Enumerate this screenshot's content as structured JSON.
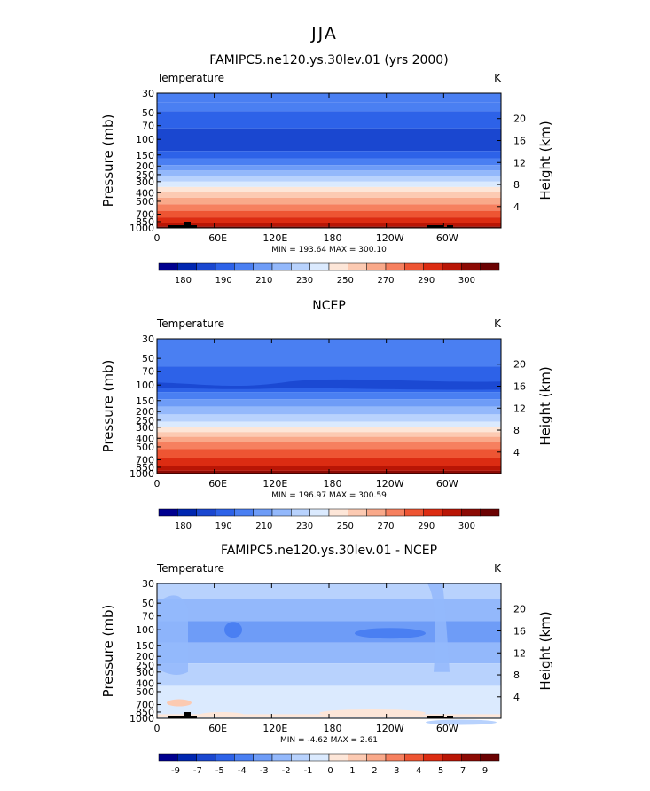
{
  "suptitle": "JJA",
  "colors": {
    "temp_levels": [
      "#00008f",
      "#0026b0",
      "#1a47d0",
      "#2d62e8",
      "#4a7ff2",
      "#6e9cf7",
      "#93b8fb",
      "#b8d2fd",
      "#dbeafe",
      "#fde6d8",
      "#fccab2",
      "#f9a98a",
      "#f6805f",
      "#ee5533",
      "#dc2c12",
      "#b91505",
      "#8c0a04",
      "#6b0202"
    ],
    "diff_levels": [
      "#00008f",
      "#0026b0",
      "#1a47d0",
      "#2d62e8",
      "#4a7ff2",
      "#6e9cf7",
      "#93b8fb",
      "#b8d2fd",
      "#dbeafe",
      "#fde6d8",
      "#fccab2",
      "#f9a98a",
      "#f6805f",
      "#ee5533",
      "#dc2c12",
      "#b91505",
      "#8c0a04",
      "#6b0202"
    ],
    "topography": "#000000"
  },
  "chart_data": [
    {
      "type": "contour",
      "title": "FAMIPC5.ne120.ys.30lev.01 (yrs 2000)",
      "left_label": "Temperature",
      "right_label": "K",
      "ylabel": "Pressure (mb)",
      "ylabel_right": "Height (km)",
      "x_ticks": [
        "0",
        "60E",
        "120E",
        "180",
        "120W",
        "60W"
      ],
      "y_ticks": [
        "30",
        "50",
        "70",
        "100",
        "150",
        "200",
        "250",
        "300",
        "400",
        "500",
        "700",
        "850",
        "1000"
      ],
      "y_right_ticks": [
        "20",
        "16",
        "12",
        "8",
        "4"
      ],
      "stats": "MIN = 193.64   MAX = 300.10",
      "colorbar_ticks": [
        "180",
        "190",
        "210",
        "230",
        "250",
        "270",
        "290",
        "300"
      ],
      "levels": [
        {
          "p": 30,
          "c": 4
        },
        {
          "p": 38,
          "c": 4
        },
        {
          "p": 48,
          "c": 3
        },
        {
          "p": 62,
          "c": 3
        },
        {
          "p": 75,
          "c": 2
        },
        {
          "p": 115,
          "c": 2
        },
        {
          "p": 135,
          "c": 3
        },
        {
          "p": 165,
          "c": 4
        },
        {
          "p": 195,
          "c": 5
        },
        {
          "p": 225,
          "c": 6
        },
        {
          "p": 260,
          "c": 7
        },
        {
          "p": 300,
          "c": 8
        },
        {
          "p": 345,
          "c": 9
        },
        {
          "p": 395,
          "c": 10
        },
        {
          "p": 455,
          "c": 11
        },
        {
          "p": 540,
          "c": 12
        },
        {
          "p": 640,
          "c": 13
        },
        {
          "p": 760,
          "c": 14
        },
        {
          "p": 880,
          "c": 15
        },
        {
          "p": 960,
          "c": 16
        }
      ]
    },
    {
      "type": "contour",
      "title": "NCEP",
      "left_label": "Temperature",
      "right_label": "K",
      "ylabel": "Pressure (mb)",
      "ylabel_right": "Height (km)",
      "x_ticks": [
        "0",
        "60E",
        "120E",
        "180",
        "120W",
        "60W"
      ],
      "y_ticks": [
        "30",
        "50",
        "70",
        "100",
        "150",
        "200",
        "250",
        "300",
        "400",
        "500",
        "700",
        "850",
        "1000"
      ],
      "y_right_ticks": [
        "20",
        "16",
        "12",
        "8",
        "4"
      ],
      "stats": "MIN = 196.97   MAX = 300.59",
      "colorbar_ticks": [
        "180",
        "190",
        "210",
        "230",
        "250",
        "270",
        "290",
        "300"
      ],
      "levels": [
        {
          "p": 30,
          "c": 4
        },
        {
          "p": 62,
          "c": 3
        },
        {
          "p": 120,
          "c": 4
        },
        {
          "p": 145,
          "c": 5
        },
        {
          "p": 175,
          "c": 6
        },
        {
          "p": 215,
          "c": 7
        },
        {
          "p": 260,
          "c": 8
        },
        {
          "p": 300,
          "c": 9
        },
        {
          "p": 340,
          "c": 10
        },
        {
          "p": 385,
          "c": 11
        },
        {
          "p": 440,
          "c": 12
        },
        {
          "p": 530,
          "c": 13
        },
        {
          "p": 660,
          "c": 14
        },
        {
          "p": 820,
          "c": 15
        },
        {
          "p": 930,
          "c": 16
        }
      ]
    },
    {
      "type": "contour",
      "title": "FAMIPC5.ne120.ys.30lev.01 - NCEP",
      "left_label": "Temperature",
      "right_label": "K",
      "ylabel": "Pressure (mb)",
      "ylabel_right": "Height (km)",
      "x_ticks": [
        "0",
        "60E",
        "120E",
        "180",
        "120W",
        "60W"
      ],
      "y_ticks": [
        "30",
        "50",
        "70",
        "100",
        "150",
        "200",
        "250",
        "300",
        "400",
        "500",
        "700",
        "850",
        "1000"
      ],
      "y_right_ticks": [
        "20",
        "16",
        "12",
        "8",
        "4"
      ],
      "stats": "MIN =   -4.62   MAX =    2.61",
      "colorbar_ticks": [
        "-9",
        "-7",
        "-5",
        "-4",
        "-3",
        "-2",
        "-1",
        "0",
        "1",
        "2",
        "3",
        "4",
        "5",
        "7",
        "9"
      ],
      "levels": [
        {
          "p": 30,
          "c": 7
        },
        {
          "p": 45,
          "c": 6
        },
        {
          "p": 80,
          "c": 5
        },
        {
          "p": 140,
          "c": 6
        },
        {
          "p": 240,
          "c": 7
        },
        {
          "p": 430,
          "c": 8
        },
        {
          "p": 900,
          "c": 9
        },
        {
          "p": 960,
          "c": 8
        }
      ]
    }
  ]
}
